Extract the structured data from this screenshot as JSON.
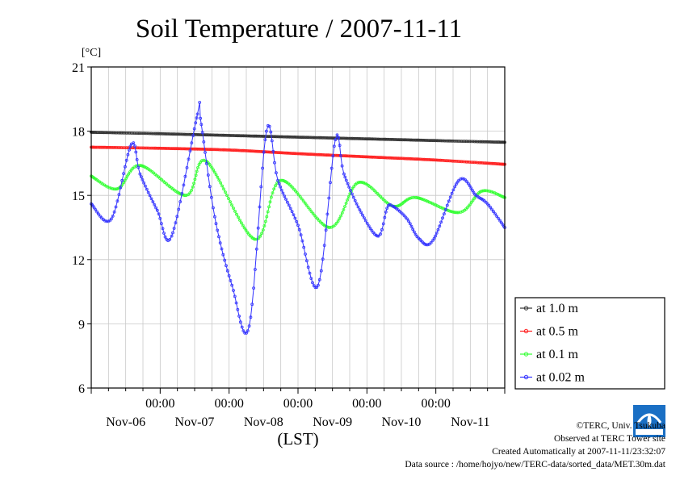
{
  "chart_data": {
    "type": "line",
    "title": "Soil Temperature / 2007-11-11",
    "unit_label": "[°C]",
    "xlabel": "(LST)",
    "ylim": [
      6,
      21
    ],
    "yticks": [
      6,
      9,
      12,
      15,
      18,
      21
    ],
    "xlim_hours": [
      0,
      144
    ],
    "x_time_ticks": [
      "00:00",
      "00:00",
      "00:00",
      "00:00",
      "00:00"
    ],
    "x_day_labels": [
      "Nov-06",
      "Nov-07",
      "Nov-08",
      "Nov-09",
      "Nov-10",
      "Nov-11"
    ],
    "grid": true,
    "legend_position": "right",
    "series": [
      {
        "name": "at 1.0 m",
        "color": "#333333",
        "x": [
          0,
          24,
          48,
          72,
          96,
          120,
          144
        ],
        "y": [
          17.95,
          17.88,
          17.8,
          17.72,
          17.64,
          17.56,
          17.48
        ]
      },
      {
        "name": "at 0.5 m",
        "color": "#ff2020",
        "x": [
          0,
          24,
          48,
          72,
          96,
          120,
          144
        ],
        "y": [
          17.25,
          17.2,
          17.12,
          16.95,
          16.8,
          16.65,
          16.45
        ]
      },
      {
        "name": "at 0.1 m",
        "color": "#33ff33",
        "x": [
          0,
          9,
          17,
          33,
          40,
          57,
          66,
          83,
          93,
          105,
          113,
          128,
          136,
          144
        ],
        "y": [
          15.9,
          15.3,
          16.4,
          15.0,
          16.6,
          12.95,
          15.7,
          13.5,
          15.6,
          14.5,
          14.9,
          14.2,
          15.2,
          14.9
        ]
      },
      {
        "name": "at 0.02 m",
        "color": "#3333ff",
        "x": [
          0,
          7,
          14,
          17,
          23,
          28,
          37,
          38,
          43,
          49,
          55,
          61,
          65,
          72,
          79,
          85,
          88,
          94,
          100,
          103,
          105,
          110,
          114,
          119,
          128,
          134,
          138,
          144
        ],
        "y": [
          14.6,
          13.9,
          17.4,
          16.0,
          14.3,
          13.1,
          18.8,
          18.6,
          14.0,
          10.8,
          8.9,
          18.0,
          15.7,
          13.6,
          10.8,
          17.6,
          16.0,
          14.2,
          13.1,
          14.4,
          14.5,
          13.9,
          13.0,
          12.9,
          15.7,
          15.0,
          14.6,
          13.5
        ]
      }
    ]
  },
  "footer": {
    "copyright": "©TERC, Univ. Tsukuba",
    "observed": "Observed at TERC Tower site",
    "created": "Created Automatically at 2007-11-11/23:32:07",
    "source": "Data source : /home/hojyo/new/TERC-data/sorted_data/MET.30m.dat"
  }
}
